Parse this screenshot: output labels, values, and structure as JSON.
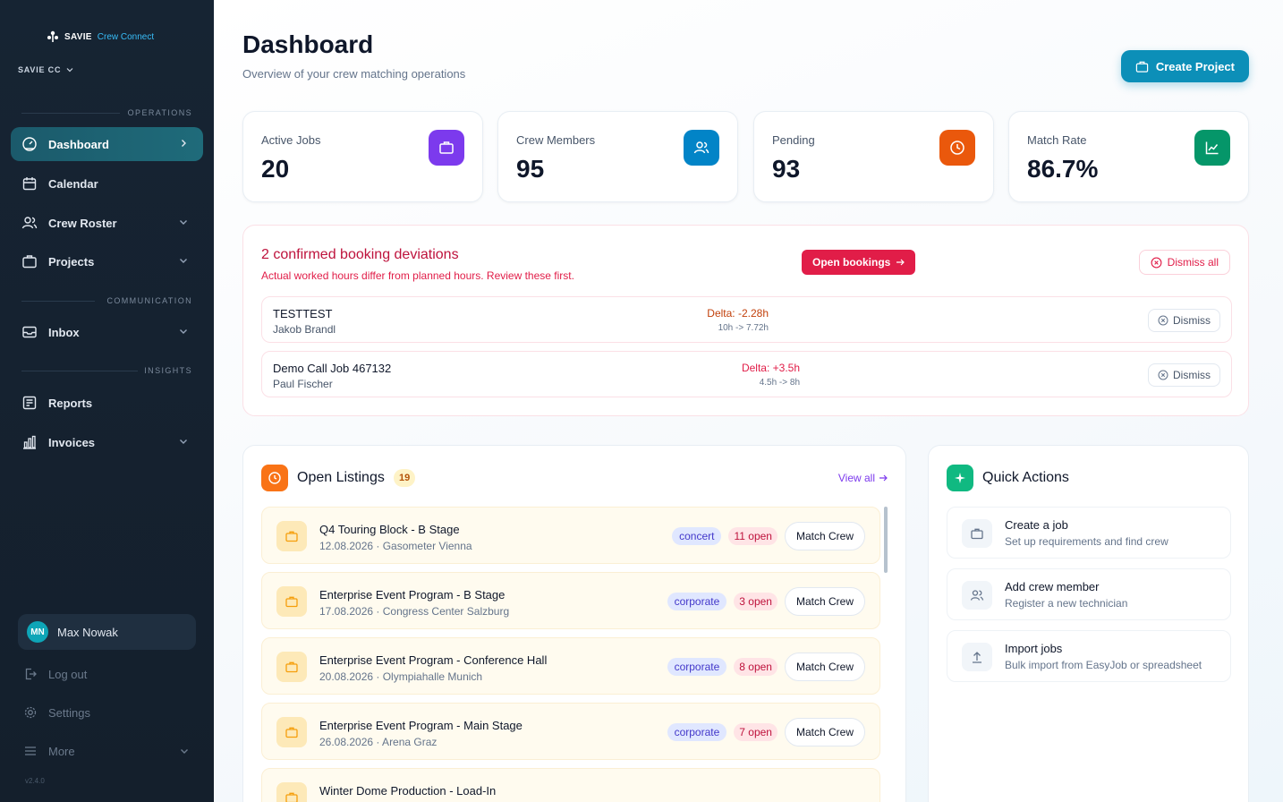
{
  "brand": {
    "name": "SAVIE",
    "product": "Crew Connect"
  },
  "org": {
    "label": "SAVIE CC"
  },
  "sidebar": {
    "sections": {
      "operations": "OPERATIONS",
      "communication": "COMMUNICATION",
      "insights": "INSIGHTS"
    },
    "items": [
      {
        "label": "Dashboard",
        "icon": "gauge-icon",
        "active": true
      },
      {
        "label": "Calendar",
        "icon": "calendar-icon"
      },
      {
        "label": "Crew Roster",
        "icon": "users-icon"
      },
      {
        "label": "Projects",
        "icon": "briefcase-icon"
      },
      {
        "label": "Inbox",
        "icon": "inbox-icon"
      },
      {
        "label": "Reports",
        "icon": "report-icon"
      },
      {
        "label": "Invoices",
        "icon": "bar-chart-icon"
      }
    ],
    "user": {
      "initials": "MN",
      "name": "Max Nowak"
    },
    "logout": "Log out",
    "settings": "Settings",
    "more": "More",
    "version": "v2.4.0"
  },
  "header": {
    "title": "Dashboard",
    "subtitle": "Overview of your crew matching operations",
    "create_label": "Create Project"
  },
  "stats": [
    {
      "label": "Active Jobs",
      "value": "20",
      "color": "#7c3aed",
      "icon": "briefcase-icon"
    },
    {
      "label": "Crew Members",
      "value": "95",
      "color": "#0284c7",
      "icon": "users-icon"
    },
    {
      "label": "Pending",
      "value": "93",
      "color": "#ea580c",
      "icon": "clock-icon"
    },
    {
      "label": "Match Rate",
      "value": "86.7%",
      "color": "#059669",
      "icon": "trend-icon"
    }
  ],
  "deviations": {
    "title": "2 confirmed booking deviations",
    "subtitle": "Actual worked hours differ from planned hours. Review these first.",
    "open_label": "Open bookings",
    "dismiss_all_label": "Dismiss all",
    "rows": [
      {
        "name": "TESTTEST",
        "person": "Jakob Brandl",
        "delta": "Delta: -2.28h",
        "range": "10h -> 7.72h",
        "delta_color": "#c2410c",
        "dismiss": "Dismiss"
      },
      {
        "name": "Demo Call Job 467132",
        "person": "Paul Fischer",
        "delta": "Delta: +3.5h",
        "range": "4.5h -> 8h",
        "delta_color": "#e11d48",
        "dismiss": "Dismiss"
      }
    ]
  },
  "listings": {
    "title": "Open Listings",
    "count": "19",
    "view_all": "View all",
    "match_label": "Match Crew",
    "items": [
      {
        "title": "Q4 Touring Block - B Stage",
        "meta": "12.08.2026 · Gasometer Vienna",
        "type": "concert",
        "open": "11 open"
      },
      {
        "title": "Enterprise Event Program - B Stage",
        "meta": "17.08.2026 · Congress Center Salzburg",
        "type": "corporate",
        "open": "3 open"
      },
      {
        "title": "Enterprise Event Program - Conference Hall",
        "meta": "20.08.2026 · Olympiahalle Munich",
        "type": "corporate",
        "open": "8 open"
      },
      {
        "title": "Enterprise Event Program - Main Stage",
        "meta": "26.08.2026 · Arena Graz",
        "type": "corporate",
        "open": "7 open"
      },
      {
        "title": "Winter Dome Production - Load-In",
        "meta": "",
        "type": "",
        "open": ""
      }
    ]
  },
  "quick_actions": {
    "title": "Quick Actions",
    "items": [
      {
        "title": "Create a job",
        "subtitle": "Set up requirements and find crew",
        "icon": "briefcase-icon"
      },
      {
        "title": "Add crew member",
        "subtitle": "Register a new technician",
        "icon": "users-icon"
      },
      {
        "title": "Import jobs",
        "subtitle": "Bulk import from EasyJob or spreadsheet",
        "icon": "upload-icon"
      }
    ]
  }
}
